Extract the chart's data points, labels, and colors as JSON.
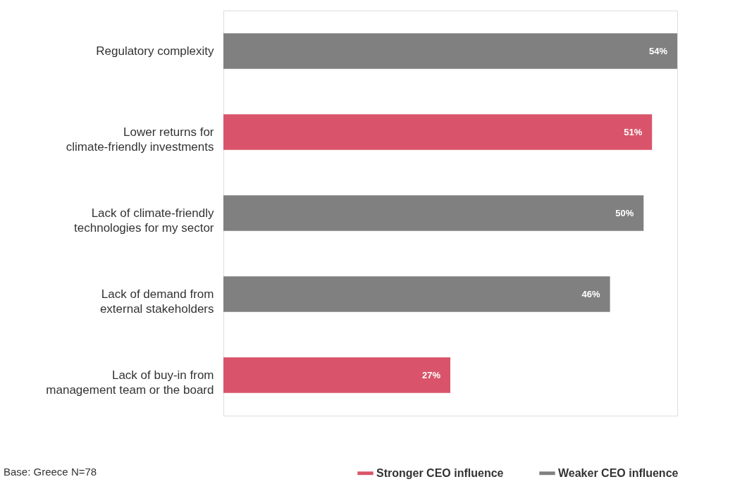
{
  "chart_data": {
    "type": "bar",
    "orientation": "horizontal",
    "categories": [
      "Regulatory complexity",
      "Lower returns for\nclimate-friendly investments",
      "Lack of climate-friendly\ntechnologies for my sector",
      "Lack of demand from\nexternal stakeholders",
      "Lack of buy-in from\nmanagement team or the board"
    ],
    "series": [
      {
        "name": "Stronger CEO influence",
        "color": "#d9546a",
        "values": [
          null,
          51,
          null,
          null,
          27
        ],
        "value_labels": [
          null,
          "51%",
          null,
          null,
          "27%"
        ]
      },
      {
        "name": "Weaker CEO influence",
        "color": "#808080",
        "values": [
          54,
          null,
          50,
          46,
          null
        ],
        "value_labels": [
          "54%",
          null,
          "50%",
          "46%",
          null
        ]
      }
    ],
    "legend": "bottom right",
    "tick_labels": "y",
    "annotations": [
      "Base: Greece N=78"
    ]
  }
}
